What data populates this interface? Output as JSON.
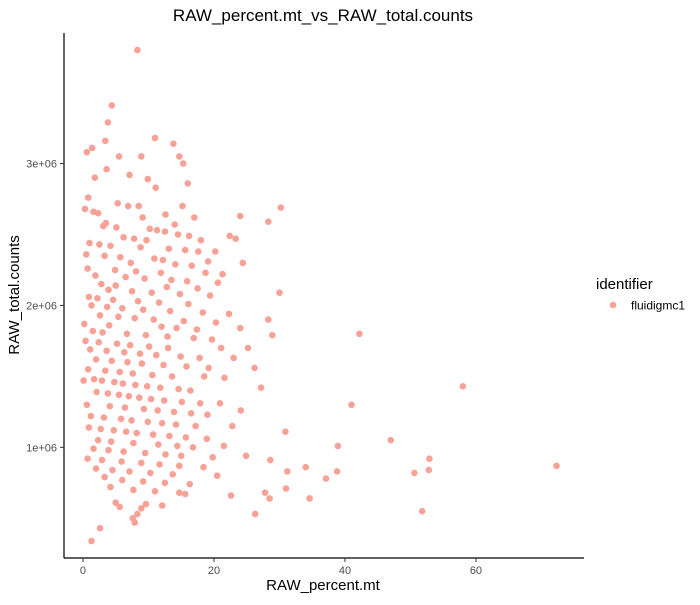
{
  "chart_data": {
    "type": "scatter",
    "title": "RAW_percent.mt_vs_RAW_total.counts",
    "xlabel": "RAW_percent.mt",
    "ylabel": "RAW_total.counts",
    "x_ticks": [
      0,
      20,
      40,
      60
    ],
    "x_tick_labels": [
      "0",
      "20",
      "40",
      "60"
    ],
    "y_ticks": [
      1000000,
      2000000,
      3000000
    ],
    "y_tick_labels": [
      "1e+06",
      "2e+06",
      "3e+06"
    ],
    "xlim": [
      -2.9,
      76.5
    ],
    "ylim": [
      220000,
      3920000
    ],
    "grid": false,
    "legend": {
      "title": "identifier",
      "position": "right",
      "entries": [
        "fluidigmc1"
      ]
    },
    "point_color": "#F8A197",
    "series": [
      {
        "name": "fluidigmc1",
        "points": [
          [
            8.3,
            3800000
          ],
          [
            4.4,
            3410000
          ],
          [
            3.8,
            3290000
          ],
          [
            3.4,
            3160000
          ],
          [
            11.0,
            3180000
          ],
          [
            13.8,
            3140000
          ],
          [
            1.4,
            3110000
          ],
          [
            0.6,
            3080000
          ],
          [
            14.7,
            3050000
          ],
          [
            5.5,
            3050000
          ],
          [
            8.9,
            3050000
          ],
          [
            15.3,
            3000000
          ],
          [
            3.6,
            2960000
          ],
          [
            7.1,
            2920000
          ],
          [
            1.8,
            2900000
          ],
          [
            9.9,
            2890000
          ],
          [
            16.0,
            2860000
          ],
          [
            11.1,
            2830000
          ],
          [
            0.8,
            2760000
          ],
          [
            5.3,
            2720000
          ],
          [
            6.9,
            2700000
          ],
          [
            8.5,
            2700000
          ],
          [
            15.2,
            2700000
          ],
          [
            30.2,
            2690000
          ],
          [
            0.3,
            2680000
          ],
          [
            1.6,
            2660000
          ],
          [
            2.3,
            2650000
          ],
          [
            12.6,
            2640000
          ],
          [
            9.1,
            2620000
          ],
          [
            24.0,
            2630000
          ],
          [
            17.0,
            2620000
          ],
          [
            28.3,
            2590000
          ],
          [
            3.5,
            2580000
          ],
          [
            14.0,
            2570000
          ],
          [
            3.1,
            2560000
          ],
          [
            5.1,
            2550000
          ],
          [
            10.2,
            2540000
          ],
          [
            11.3,
            2530000
          ],
          [
            12.5,
            2520000
          ],
          [
            14.5,
            2500000
          ],
          [
            16.2,
            2490000
          ],
          [
            22.4,
            2490000
          ],
          [
            6.2,
            2480000
          ],
          [
            7.8,
            2470000
          ],
          [
            9.7,
            2460000
          ],
          [
            18.0,
            2460000
          ],
          [
            23.3,
            2470000
          ],
          [
            1.0,
            2440000
          ],
          [
            2.5,
            2430000
          ],
          [
            4.2,
            2420000
          ],
          [
            8.8,
            2410000
          ],
          [
            13.1,
            2400000
          ],
          [
            15.6,
            2390000
          ],
          [
            17.6,
            2380000
          ],
          [
            20.2,
            2380000
          ],
          [
            0.5,
            2360000
          ],
          [
            3.3,
            2350000
          ],
          [
            5.7,
            2340000
          ],
          [
            10.9,
            2330000
          ],
          [
            12.2,
            2320000
          ],
          [
            19.1,
            2310000
          ],
          [
            7.3,
            2300000
          ],
          [
            14.1,
            2290000
          ],
          [
            16.6,
            2280000
          ],
          [
            24.4,
            2300000
          ],
          [
            0.7,
            2260000
          ],
          [
            4.9,
            2250000
          ],
          [
            8.1,
            2240000
          ],
          [
            11.9,
            2230000
          ],
          [
            18.7,
            2230000
          ],
          [
            21.3,
            2220000
          ],
          [
            1.9,
            2210000
          ],
          [
            6.5,
            2200000
          ],
          [
            9.4,
            2190000
          ],
          [
            13.5,
            2180000
          ],
          [
            15.9,
            2170000
          ],
          [
            20.6,
            2160000
          ],
          [
            2.8,
            2150000
          ],
          [
            5.0,
            2140000
          ],
          [
            12.8,
            2130000
          ],
          [
            17.5,
            2120000
          ],
          [
            3.9,
            2110000
          ],
          [
            7.5,
            2100000
          ],
          [
            10.5,
            2090000
          ],
          [
            14.8,
            2080000
          ],
          [
            19.4,
            2070000
          ],
          [
            0.9,
            2060000
          ],
          [
            2.2,
            2050000
          ],
          [
            4.6,
            2040000
          ],
          [
            8.4,
            2030000
          ],
          [
            11.6,
            2020000
          ],
          [
            16.1,
            2010000
          ],
          [
            30.0,
            2090000
          ],
          [
            1.3,
            2000000
          ],
          [
            3.7,
            1990000
          ],
          [
            6.0,
            1980000
          ],
          [
            9.2,
            1970000
          ],
          [
            13.3,
            1960000
          ],
          [
            18.3,
            1950000
          ],
          [
            22.3,
            1940000
          ],
          [
            2.6,
            1930000
          ],
          [
            5.4,
            1920000
          ],
          [
            7.9,
            1910000
          ],
          [
            10.8,
            1900000
          ],
          [
            15.4,
            1890000
          ],
          [
            20.3,
            1880000
          ],
          [
            28.3,
            1900000
          ],
          [
            0.2,
            1870000
          ],
          [
            4.0,
            1860000
          ],
          [
            12.0,
            1850000
          ],
          [
            14.3,
            1840000
          ],
          [
            17.4,
            1830000
          ],
          [
            24.0,
            1840000
          ],
          [
            1.5,
            1820000
          ],
          [
            3.0,
            1810000
          ],
          [
            6.7,
            1800000
          ],
          [
            9.6,
            1790000
          ],
          [
            12.9,
            1780000
          ],
          [
            16.9,
            1770000
          ],
          [
            19.7,
            1760000
          ],
          [
            42.2,
            1800000
          ],
          [
            28.9,
            1790000
          ],
          [
            0.4,
            1750000
          ],
          [
            2.4,
            1740000
          ],
          [
            5.2,
            1730000
          ],
          [
            7.2,
            1720000
          ],
          [
            10.1,
            1710000
          ],
          [
            13.0,
            1700000
          ],
          [
            21.1,
            1700000
          ],
          [
            25.2,
            1700000
          ],
          [
            1.1,
            1690000
          ],
          [
            3.6,
            1680000
          ],
          [
            6.3,
            1670000
          ],
          [
            8.7,
            1660000
          ],
          [
            11.2,
            1650000
          ],
          [
            14.9,
            1640000
          ],
          [
            17.8,
            1630000
          ],
          [
            23.0,
            1630000
          ],
          [
            2.0,
            1620000
          ],
          [
            4.4,
            1610000
          ],
          [
            6.8,
            1600000
          ],
          [
            9.0,
            1590000
          ],
          [
            12.3,
            1580000
          ],
          [
            15.8,
            1570000
          ],
          [
            19.2,
            1560000
          ],
          [
            26.2,
            1560000
          ],
          [
            0.8,
            1550000
          ],
          [
            3.4,
            1540000
          ],
          [
            5.6,
            1530000
          ],
          [
            7.6,
            1520000
          ],
          [
            10.6,
            1510000
          ],
          [
            13.6,
            1500000
          ],
          [
            18.5,
            1500000
          ],
          [
            21.6,
            1490000
          ],
          [
            1.7,
            1480000
          ],
          [
            2.9,
            1470000
          ],
          [
            4.8,
            1460000
          ],
          [
            6.1,
            1450000
          ],
          [
            8.0,
            1440000
          ],
          [
            9.8,
            1430000
          ],
          [
            11.8,
            1420000
          ],
          [
            14.6,
            1410000
          ],
          [
            16.4,
            1400000
          ],
          [
            27.2,
            1420000
          ],
          [
            58.0,
            1430000
          ],
          [
            0.1,
            1470000
          ],
          [
            2.1,
            1390000
          ],
          [
            3.8,
            1380000
          ],
          [
            5.5,
            1370000
          ],
          [
            7.0,
            1360000
          ],
          [
            8.6,
            1350000
          ],
          [
            10.4,
            1340000
          ],
          [
            12.4,
            1330000
          ],
          [
            15.1,
            1320000
          ],
          [
            17.9,
            1310000
          ],
          [
            20.9,
            1310000
          ],
          [
            0.6,
            1300000
          ],
          [
            4.1,
            1290000
          ],
          [
            6.4,
            1280000
          ],
          [
            9.3,
            1270000
          ],
          [
            11.4,
            1260000
          ],
          [
            13.9,
            1250000
          ],
          [
            16.5,
            1240000
          ],
          [
            19.0,
            1230000
          ],
          [
            41.0,
            1300000
          ],
          [
            24.1,
            1260000
          ],
          [
            1.2,
            1220000
          ],
          [
            3.2,
            1210000
          ],
          [
            5.8,
            1200000
          ],
          [
            7.4,
            1190000
          ],
          [
            9.9,
            1180000
          ],
          [
            12.1,
            1170000
          ],
          [
            14.2,
            1160000
          ],
          [
            17.2,
            1150000
          ],
          [
            22.8,
            1150000
          ],
          [
            0.9,
            1140000
          ],
          [
            2.7,
            1130000
          ],
          [
            4.7,
            1120000
          ],
          [
            6.6,
            1110000
          ],
          [
            8.2,
            1100000
          ],
          [
            10.7,
            1090000
          ],
          [
            13.2,
            1080000
          ],
          [
            15.7,
            1070000
          ],
          [
            18.9,
            1060000
          ],
          [
            30.9,
            1110000
          ],
          [
            2.3,
            1050000
          ],
          [
            4.3,
            1040000
          ],
          [
            7.7,
            1030000
          ],
          [
            11.5,
            1020000
          ],
          [
            14.4,
            1010000
          ],
          [
            16.8,
            1000000
          ],
          [
            21.5,
            1010000
          ],
          [
            38.9,
            1010000
          ],
          [
            47.0,
            1050000
          ],
          [
            1.6,
            990000
          ],
          [
            3.9,
            980000
          ],
          [
            6.2,
            970000
          ],
          [
            9.5,
            960000
          ],
          [
            12.6,
            950000
          ],
          [
            15.0,
            940000
          ],
          [
            19.8,
            930000
          ],
          [
            24.9,
            940000
          ],
          [
            28.6,
            910000
          ],
          [
            52.9,
            920000
          ],
          [
            0.7,
            920000
          ],
          [
            2.9,
            910000
          ],
          [
            5.9,
            900000
          ],
          [
            8.9,
            890000
          ],
          [
            11.7,
            880000
          ],
          [
            14.7,
            870000
          ],
          [
            18.4,
            860000
          ],
          [
            34.0,
            860000
          ],
          [
            72.3,
            870000
          ],
          [
            2.0,
            850000
          ],
          [
            4.5,
            840000
          ],
          [
            7.1,
            830000
          ],
          [
            10.3,
            820000
          ],
          [
            13.7,
            810000
          ],
          [
            20.5,
            800000
          ],
          [
            31.2,
            830000
          ],
          [
            50.6,
            820000
          ],
          [
            52.8,
            840000
          ],
          [
            37.1,
            780000
          ],
          [
            38.8,
            830000
          ],
          [
            3.3,
            790000
          ],
          [
            6.0,
            770000
          ],
          [
            9.2,
            760000
          ],
          [
            12.5,
            750000
          ],
          [
            16.3,
            740000
          ],
          [
            4.2,
            720000
          ],
          [
            7.7,
            700000
          ],
          [
            11.0,
            690000
          ],
          [
            14.7,
            680000
          ],
          [
            31.0,
            710000
          ],
          [
            27.8,
            680000
          ],
          [
            28.5,
            640000
          ],
          [
            34.6,
            640000
          ],
          [
            22.6,
            660000
          ],
          [
            15.6,
            670000
          ],
          [
            5.0,
            610000
          ],
          [
            9.6,
            600000
          ],
          [
            12.1,
            590000
          ],
          [
            5.6,
            580000
          ],
          [
            8.9,
            570000
          ],
          [
            26.3,
            530000
          ],
          [
            51.8,
            550000
          ],
          [
            7.6,
            500000
          ],
          [
            8.3,
            530000
          ],
          [
            2.6,
            430000
          ],
          [
            1.3,
            340000
          ],
          [
            7.9,
            470000
          ]
        ]
      }
    ]
  }
}
